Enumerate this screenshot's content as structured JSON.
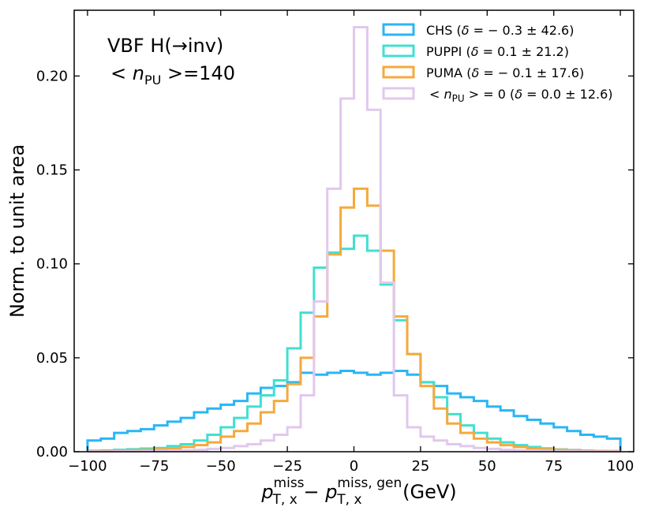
{
  "chart_data": {
    "type": "step",
    "annotation": {
      "line1": "VBF H(→inv)",
      "line2_prefix": "< ",
      "line2_symbol": "n",
      "line2_sub": "PU",
      "line2_suffix": " >=140"
    },
    "xlabel": {
      "p": "p",
      "sub1": "T, x",
      "sup1": "miss",
      "minus": " − ",
      "p2": "p",
      "sub2": "T, x",
      "sup2": "miss, gen",
      "unit": " (GeV)"
    },
    "ylabel": "Norm. to unit area",
    "xlim": [
      -105,
      105
    ],
    "ylim": [
      0,
      0.235
    ],
    "xticks": [
      -100,
      -75,
      -50,
      -25,
      0,
      25,
      50,
      75,
      100
    ],
    "xtick_labels": [
      "−100",
      "−75",
      "−50",
      "−25",
      "0",
      "25",
      "50",
      "75",
      "100"
    ],
    "yticks": [
      0.0,
      0.05,
      0.1,
      0.15,
      0.2
    ],
    "ytick_labels": [
      "0.00",
      "0.05",
      "0.10",
      "0.15",
      "0.20"
    ],
    "bin_edges": [
      -100,
      -95,
      -90,
      -85,
      -80,
      -75,
      -70,
      -65,
      -60,
      -55,
      -50,
      -45,
      -40,
      -35,
      -30,
      -25,
      -20,
      -15,
      -10,
      -5,
      0,
      5,
      10,
      15,
      20,
      25,
      30,
      35,
      40,
      45,
      50,
      55,
      60,
      65,
      70,
      75,
      80,
      85,
      90,
      95,
      100
    ],
    "series": [
      {
        "name": "CHS",
        "legend_parts": {
          "label": "CHS (",
          "delta": "δ",
          "rest": " = − 0.3 ± 42.6)"
        },
        "color": "#29b6f6",
        "values": [
          0.006,
          0.007,
          0.01,
          0.011,
          0.012,
          0.014,
          0.016,
          0.018,
          0.021,
          0.023,
          0.025,
          0.027,
          0.031,
          0.034,
          0.035,
          0.037,
          0.042,
          0.041,
          0.042,
          0.043,
          0.042,
          0.041,
          0.042,
          0.043,
          0.041,
          0.037,
          0.035,
          0.031,
          0.029,
          0.027,
          0.024,
          0.022,
          0.019,
          0.017,
          0.015,
          0.013,
          0.011,
          0.009,
          0.008,
          0.007
        ]
      },
      {
        "name": "PUPPI",
        "legend_parts": {
          "label": "PUPPI (",
          "delta": "δ",
          "rest": " = 0.1 ± 21.2)"
        },
        "color": "#40e0d0",
        "values": [
          0.0005,
          0.0007,
          0.001,
          0.0013,
          0.0017,
          0.002,
          0.003,
          0.004,
          0.006,
          0.009,
          0.013,
          0.018,
          0.024,
          0.03,
          0.038,
          0.055,
          0.074,
          0.098,
          0.106,
          0.108,
          0.115,
          0.107,
          0.089,
          0.07,
          0.052,
          0.037,
          0.029,
          0.02,
          0.014,
          0.01,
          0.007,
          0.005,
          0.0035,
          0.0025,
          0.0018,
          0.0012,
          0.0009,
          0.0006,
          0.0004,
          0.0003
        ]
      },
      {
        "name": "PUMA",
        "legend_parts": {
          "label": "PUMA (",
          "delta": "δ",
          "rest": " = − 0.1 ± 17.6)"
        },
        "color": "#f5a93c",
        "values": [
          0.0003,
          0.0004,
          0.0006,
          0.0008,
          0.001,
          0.0013,
          0.0018,
          0.0025,
          0.0035,
          0.005,
          0.008,
          0.011,
          0.015,
          0.021,
          0.027,
          0.036,
          0.05,
          0.072,
          0.105,
          0.13,
          0.14,
          0.131,
          0.107,
          0.072,
          0.052,
          0.035,
          0.023,
          0.015,
          0.01,
          0.007,
          0.005,
          0.0035,
          0.0025,
          0.0018,
          0.0013,
          0.001,
          0.0008,
          0.0006,
          0.0004,
          0.0003
        ]
      },
      {
        "name": "<nPU> = 0",
        "legend_parts": {
          "label": "< ",
          "n": "n",
          "nsub": "PU",
          "rest_pre": " > = 0 (",
          "delta": "δ",
          "rest": " = 0.0 ± 12.6)"
        },
        "color": "#e1c8ee",
        "values": [
          0.0001,
          0.0001,
          0.0002,
          0.0002,
          0.0003,
          0.0004,
          0.0005,
          0.0007,
          0.001,
          0.0015,
          0.002,
          0.003,
          0.004,
          0.006,
          0.009,
          0.013,
          0.03,
          0.08,
          0.14,
          0.188,
          0.226,
          0.182,
          0.09,
          0.03,
          0.013,
          0.008,
          0.006,
          0.004,
          0.003,
          0.002,
          0.0015,
          0.001,
          0.0007,
          0.0005,
          0.0004,
          0.0003,
          0.0002,
          0.0002,
          0.0001,
          0.0001
        ]
      }
    ]
  }
}
